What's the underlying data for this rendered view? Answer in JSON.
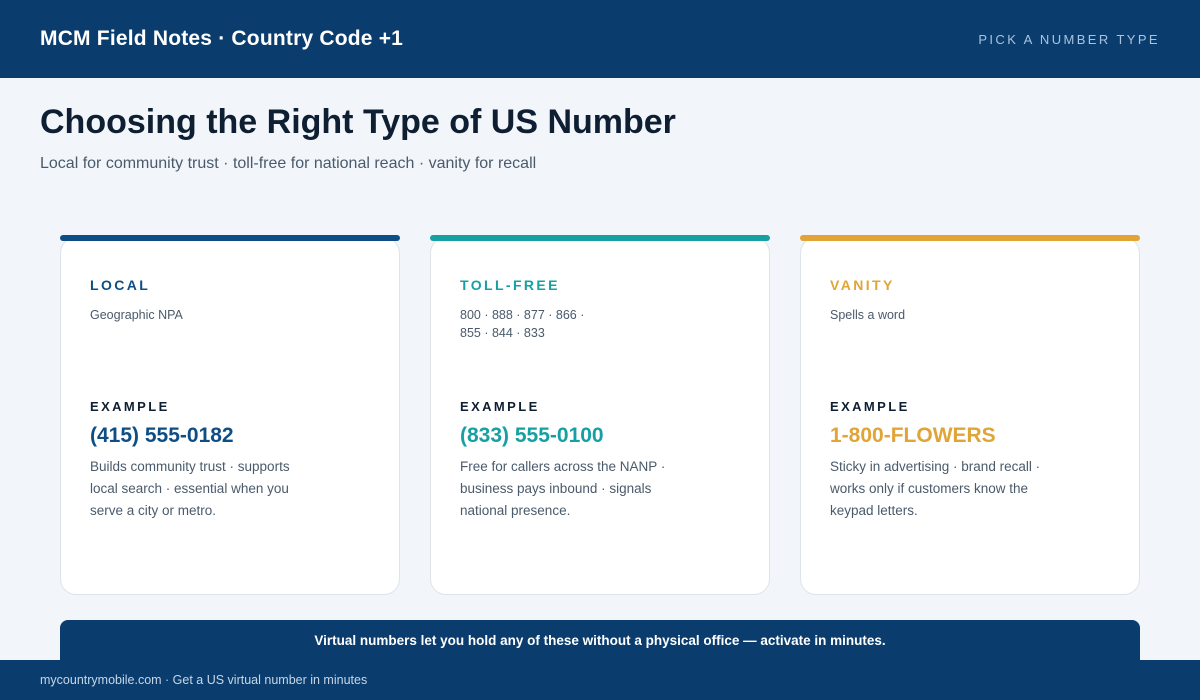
{
  "header": {
    "brand": "MCM Field Notes · Country Code +1",
    "nav_link": "PICK A NUMBER TYPE"
  },
  "page": {
    "title": "Choosing the Right Type of US Number",
    "subtitle": "Local for community trust · toll-free for national reach · vanity for recall"
  },
  "colors": {
    "navy": "#0a3d6e",
    "local_accent": "#0f4e85",
    "tollfree_accent": "#16a0a3",
    "vanity_accent": "#e0a437"
  },
  "cards": [
    {
      "label": "LOCAL",
      "desc": "Geographic NPA",
      "example_label": "EXAMPLE",
      "example_number": "(415) 555-0182",
      "body": "Builds community trust · supports local search · essential when you serve a city or metro."
    },
    {
      "label": "TOLL-FREE",
      "desc": "800 · 888 · 877 · 866 · 855 · 844 · 833",
      "example_label": "EXAMPLE",
      "example_number": "(833) 555-0100",
      "body": "Free for callers across the NANP · business pays inbound · signals national presence."
    },
    {
      "label": "VANITY",
      "desc": "Spells a word",
      "example_label": "EXAMPLE",
      "example_number": "1-800-FLOWERS",
      "body": "Sticky in advertising · brand recall · works only if customers know the keypad letters."
    }
  ],
  "banner": {
    "text": "Virtual numbers let you hold any of these without a physical office — activate in minutes."
  },
  "footer": {
    "text": "mycountrymobile.com · Get a US virtual number in minutes"
  }
}
